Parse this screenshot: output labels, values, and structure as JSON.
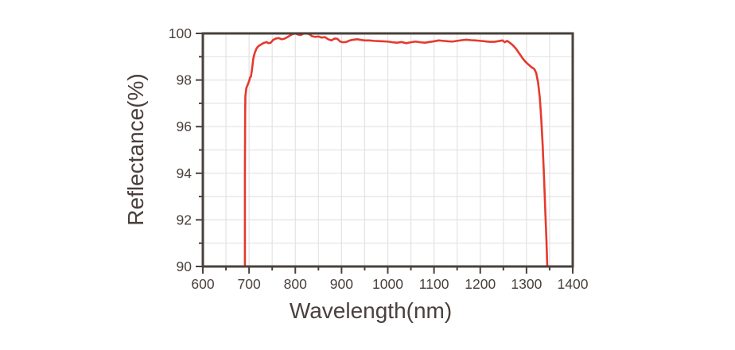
{
  "chart_data": {
    "type": "line",
    "title": "",
    "xlabel": "Wavelength(nm)",
    "ylabel": "Reflectance(%)",
    "xlim": [
      600,
      1400
    ],
    "ylim": [
      90,
      100
    ],
    "x_ticks": [
      600,
      700,
      800,
      900,
      1000,
      1100,
      1200,
      1300,
      1400
    ],
    "x_tick_labels": [
      "600",
      "700",
      "800",
      "900",
      "1000",
      "1100",
      "1200",
      "1300",
      "1400"
    ],
    "x_minor_step": 50,
    "y_ticks": [
      90,
      92,
      94,
      96,
      98,
      100
    ],
    "y_tick_labels": [
      "90",
      "92",
      "94",
      "96",
      "98",
      "100"
    ],
    "y_minor_step": 1,
    "grid": true,
    "legend": "none",
    "colors": {
      "line": "#e6392e",
      "axis": "#4a403c",
      "grid": "#e3e3e3",
      "background": "#ffffff"
    },
    "series": [
      {
        "name": "reflectance",
        "points": [
          [
            691,
            90.0
          ],
          [
            691,
            94.0
          ],
          [
            691.5,
            96.5
          ],
          [
            692,
            97.3
          ],
          [
            694,
            97.65
          ],
          [
            697,
            97.8
          ],
          [
            700,
            97.95
          ],
          [
            702,
            98.1
          ],
          [
            704,
            98.15
          ],
          [
            706,
            98.4
          ],
          [
            709,
            98.9
          ],
          [
            712,
            99.15
          ],
          [
            716,
            99.35
          ],
          [
            720,
            99.45
          ],
          [
            724,
            99.5
          ],
          [
            728,
            99.55
          ],
          [
            733,
            99.6
          ],
          [
            738,
            99.63
          ],
          [
            742,
            99.58
          ],
          [
            747,
            99.6
          ],
          [
            752,
            99.72
          ],
          [
            758,
            99.78
          ],
          [
            764,
            99.8
          ],
          [
            770,
            99.75
          ],
          [
            776,
            99.77
          ],
          [
            782,
            99.83
          ],
          [
            788,
            99.9
          ],
          [
            794,
            99.97
          ],
          [
            800,
            100.0
          ],
          [
            806,
            99.95
          ],
          [
            812,
            99.93
          ],
          [
            818,
            100.0
          ],
          [
            824,
            100.0
          ],
          [
            830,
            99.97
          ],
          [
            836,
            99.88
          ],
          [
            843,
            99.85
          ],
          [
            850,
            99.87
          ],
          [
            857,
            99.82
          ],
          [
            864,
            99.84
          ],
          [
            871,
            99.75
          ],
          [
            878,
            99.7
          ],
          [
            885,
            99.78
          ],
          [
            891,
            99.77
          ],
          [
            897,
            99.65
          ],
          [
            903,
            99.62
          ],
          [
            910,
            99.63
          ],
          [
            918,
            99.7
          ],
          [
            926,
            99.73
          ],
          [
            934,
            99.75
          ],
          [
            942,
            99.72
          ],
          [
            950,
            99.7
          ],
          [
            960,
            99.7
          ],
          [
            970,
            99.68
          ],
          [
            980,
            99.67
          ],
          [
            990,
            99.66
          ],
          [
            1000,
            99.65
          ],
          [
            1010,
            99.62
          ],
          [
            1020,
            99.6
          ],
          [
            1030,
            99.63
          ],
          [
            1040,
            99.58
          ],
          [
            1050,
            99.62
          ],
          [
            1060,
            99.65
          ],
          [
            1070,
            99.62
          ],
          [
            1080,
            99.6
          ],
          [
            1090,
            99.63
          ],
          [
            1100,
            99.66
          ],
          [
            1110,
            99.7
          ],
          [
            1120,
            99.68
          ],
          [
            1130,
            99.66
          ],
          [
            1140,
            99.65
          ],
          [
            1150,
            99.68
          ],
          [
            1160,
            99.71
          ],
          [
            1170,
            99.73
          ],
          [
            1180,
            99.71
          ],
          [
            1190,
            99.7
          ],
          [
            1200,
            99.68
          ],
          [
            1210,
            99.66
          ],
          [
            1220,
            99.64
          ],
          [
            1230,
            99.64
          ],
          [
            1240,
            99.67
          ],
          [
            1248,
            99.7
          ],
          [
            1253,
            99.62
          ],
          [
            1258,
            99.68
          ],
          [
            1264,
            99.6
          ],
          [
            1270,
            99.5
          ],
          [
            1277,
            99.35
          ],
          [
            1284,
            99.15
          ],
          [
            1291,
            98.95
          ],
          [
            1298,
            98.78
          ],
          [
            1305,
            98.65
          ],
          [
            1311,
            98.55
          ],
          [
            1317,
            98.47
          ],
          [
            1321,
            98.3
          ],
          [
            1325,
            97.9
          ],
          [
            1329,
            97.2
          ],
          [
            1332,
            96.3
          ],
          [
            1335,
            95.2
          ],
          [
            1338,
            93.8
          ],
          [
            1341,
            92.2
          ],
          [
            1343,
            91.2
          ],
          [
            1345,
            90.0
          ]
        ]
      }
    ]
  }
}
